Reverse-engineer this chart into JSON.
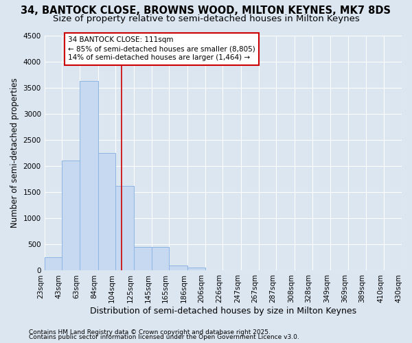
{
  "title1": "34, BANTOCK CLOSE, BROWNS WOOD, MILTON KEYNES, MK7 8DS",
  "title2": "Size of property relative to semi-detached houses in Milton Keynes",
  "xlabel": "Distribution of semi-detached houses by size in Milton Keynes",
  "ylabel": "Number of semi-detached properties",
  "footnote1": "Contains HM Land Registry data © Crown copyright and database right 2025.",
  "footnote2": "Contains public sector information licensed under the Open Government Licence v3.0.",
  "property_label": "34 BANTOCK CLOSE: 111sqm",
  "annotation_line1": "← 85% of semi-detached houses are smaller (8,805)",
  "annotation_line2": "14% of semi-detached houses are larger (1,464) →",
  "bar_edges": [
    23,
    43,
    63,
    84,
    104,
    125,
    145,
    165,
    186,
    206,
    226,
    247,
    267,
    287,
    308,
    328,
    349,
    369,
    389,
    410,
    430
  ],
  "bar_heights": [
    250,
    2100,
    3625,
    2250,
    1625,
    450,
    450,
    100,
    55,
    0,
    0,
    0,
    0,
    0,
    0,
    0,
    0,
    0,
    0,
    0
  ],
  "bar_color": "#c6d9f0",
  "bar_edge_color": "#8db4e2",
  "vline_color": "#cc0000",
  "vline_x": 111,
  "annotation_box_color": "#cc0000",
  "bg_color": "#dce6f1",
  "plot_bg_color": "#dce6f1",
  "grid_color": "#ffffff",
  "ylim": [
    0,
    4500
  ],
  "yticks": [
    0,
    500,
    1000,
    1500,
    2000,
    2500,
    3000,
    3500,
    4000,
    4500
  ],
  "title1_fontsize": 10.5,
  "title2_fontsize": 9.5,
  "xlabel_fontsize": 9,
  "ylabel_fontsize": 8.5,
  "tick_fontsize": 7.5,
  "annotation_fontsize": 7.5,
  "footnote_fontsize": 6.5
}
